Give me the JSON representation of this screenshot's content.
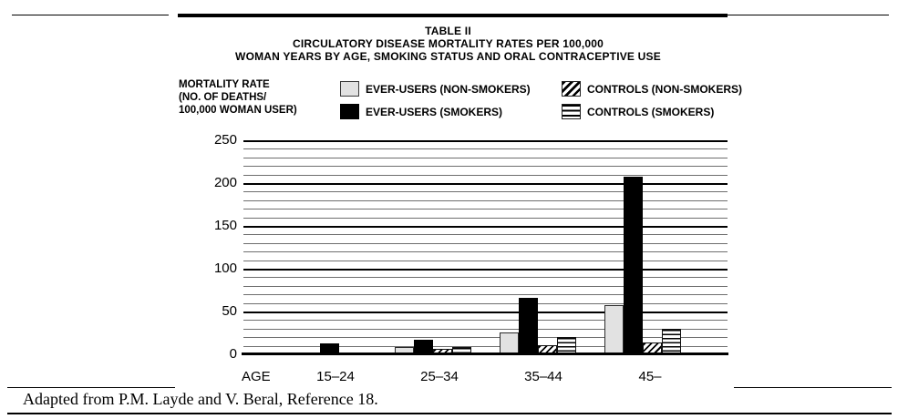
{
  "document": {
    "caption": "Adapted from P.M. Layde and V. Beral, Reference 18."
  },
  "chart": {
    "title_line1": "TABLE II",
    "title_line2": "CIRCULATORY DISEASE MORTALITY RATES PER 100,000",
    "title_line3": "WOMAN YEARS BY AGE, SMOKING STATUS AND ORAL CONTRACEPTIVE USE",
    "y_label_line1": "MORTALITY RATE",
    "y_label_line2": "(NO. OF DEATHS/",
    "y_label_line3": "100,000 WOMAN USER)",
    "x_axis_title": "AGE"
  },
  "chart_data": {
    "type": "bar",
    "title": "TABLE II",
    "subtitle": "CIRCULATORY DISEASE MORTALITY RATES PER 100,000 WOMAN YEARS BY AGE, SMOKING STATUS AND ORAL CONTRACEPTIVE USE",
    "xlabel": "AGE",
    "ylabel": "MORTALITY RATE (NO. OF DEATHS/100,000 WOMAN USER)",
    "ylim": [
      0,
      250
    ],
    "yticks": [
      250,
      200,
      150,
      100,
      50,
      0
    ],
    "minor_gridline_step": 10,
    "grid": "horizontal-lines",
    "legend_position": "top",
    "categories": [
      "15–24",
      "25–34",
      "35–44",
      "45–"
    ],
    "series": [
      {
        "name": "EVER-USERS (NON-SMOKERS)",
        "pattern": "solid-light-gray",
        "values": [
          0,
          8,
          24,
          56
        ]
      },
      {
        "name": "EVER-USERS (SMOKERS)",
        "pattern": "solid-black",
        "values": [
          12,
          16,
          65,
          206
        ]
      },
      {
        "name": "CONTROLS (NON-SMOKERS)",
        "pattern": "diagonal-hatch",
        "values": [
          0,
          5,
          10,
          13
        ]
      },
      {
        "name": "CONTROLS (SMOKERS)",
        "pattern": "horizontal-stripes",
        "values": [
          0,
          8,
          19,
          29
        ]
      }
    ]
  },
  "colors": {
    "ink": "#000000",
    "bar_light_gray": "#e2e2e2",
    "minor_gridline": "#6e6e6e",
    "background": "#ffffff"
  }
}
